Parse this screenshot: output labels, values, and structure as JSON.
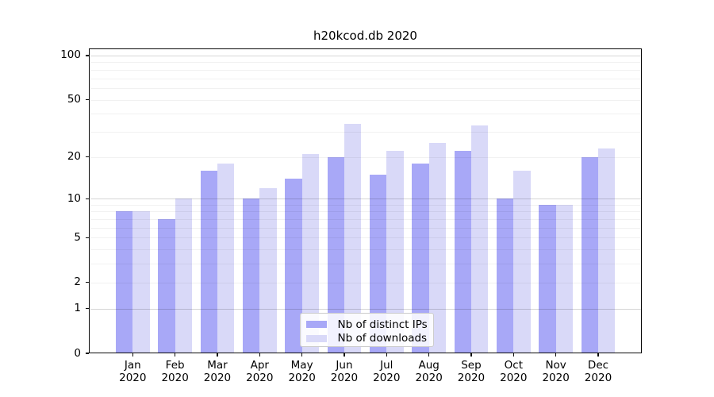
{
  "chart_data": {
    "type": "bar",
    "title": "h20kcod.db 2020",
    "categories": [
      "Jan",
      "Feb",
      "Mar",
      "Apr",
      "May",
      "Jun",
      "Jul",
      "Aug",
      "Sep",
      "Oct",
      "Nov",
      "Dec"
    ],
    "x_tick_year": "2020",
    "x_tick_labels": [
      [
        "Jan",
        "2020"
      ],
      [
        "Feb",
        "2020"
      ],
      [
        "Mar",
        "2020"
      ],
      [
        "Apr",
        "2020"
      ],
      [
        "May",
        "2020"
      ],
      [
        "Jun",
        "2020"
      ],
      [
        "Jul",
        "2020"
      ],
      [
        "Aug",
        "2020"
      ],
      [
        "Sep",
        "2020"
      ],
      [
        "Oct",
        "2020"
      ],
      [
        "Nov",
        "2020"
      ],
      [
        "Dec",
        "2020"
      ]
    ],
    "series": [
      {
        "name": "Nb of distinct IPs",
        "color": "#a8a8f7",
        "values": [
          8,
          7,
          16,
          10,
          14,
          20,
          15,
          18,
          22,
          10,
          9,
          20
        ]
      },
      {
        "name": "Nb of downloads",
        "color": "#d9d9f8",
        "values": [
          8,
          10,
          18,
          12,
          21,
          34,
          22,
          25,
          33,
          16,
          9,
          23
        ]
      }
    ],
    "xlabel": "",
    "ylabel": "",
    "yscale": "log1p",
    "yticks": [
      0,
      1,
      2,
      5,
      10,
      20,
      50,
      100
    ],
    "ylim": [
      0,
      111
    ],
    "grid": true,
    "grid_major_at": [
      1,
      10,
      100
    ],
    "grid_minor_at": [
      2,
      3,
      4,
      5,
      6,
      7,
      8,
      9,
      20,
      30,
      40,
      50,
      60,
      70,
      80,
      90
    ],
    "legend_position": "lower center",
    "colors": {
      "axis": "#0a0a0a",
      "grid_major": "rgba(0,0,0,0.16)",
      "grid_minor": "rgba(0,0,0,0.055)",
      "background": "#ffffff"
    }
  }
}
